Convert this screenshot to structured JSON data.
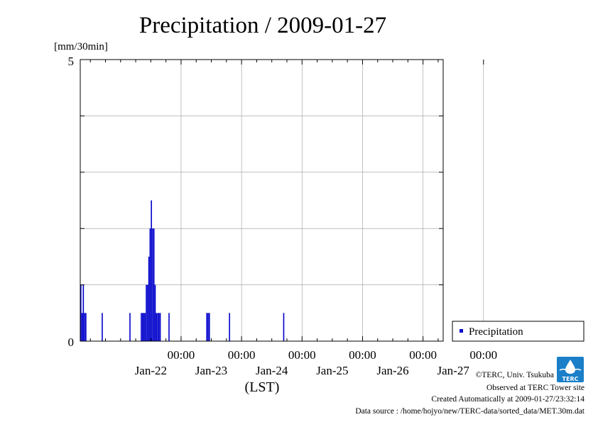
{
  "chart_data": {
    "type": "bar",
    "title": "Precipitation / 2009-01-27",
    "ylabel": "[mm/30min]",
    "xlabel": "(LST)",
    "ylim": [
      0,
      5
    ],
    "y_ticks": [
      "0",
      "5"
    ],
    "x_ticks": [
      {
        "time": "00:00",
        "date": "Jan-22"
      },
      {
        "time": "00:00",
        "date": "Jan-23"
      },
      {
        "time": "00:00",
        "date": "Jan-24"
      },
      {
        "time": "00:00",
        "date": "Jan-25"
      },
      {
        "time": "00:00",
        "date": "Jan-26"
      },
      {
        "time": "00:00",
        "date": "Jan-27"
      }
    ],
    "x_range_hours": [
      -40,
      104
    ],
    "grid": true,
    "legend": {
      "position": "right",
      "entries": [
        "Precipitation"
      ]
    },
    "series": [
      {
        "name": "Precipitation",
        "color": "#0000cc",
        "points": [
          {
            "t": -40.0,
            "v": 1.0
          },
          {
            "t": -39.5,
            "v": 0.5
          },
          {
            "t": -39.0,
            "v": 1.0
          },
          {
            "t": -38.5,
            "v": 0.5
          },
          {
            "t": -38.0,
            "v": 0.5
          },
          {
            "t": -31.5,
            "v": 0.5
          },
          {
            "t": -20.5,
            "v": 0.5
          },
          {
            "t": -16.0,
            "v": 0.5
          },
          {
            "t": -15.5,
            "v": 0.5
          },
          {
            "t": -15.0,
            "v": 0.5
          },
          {
            "t": -14.5,
            "v": 0.5
          },
          {
            "t": -14.0,
            "v": 1.0
          },
          {
            "t": -13.5,
            "v": 1.0
          },
          {
            "t": -13.0,
            "v": 1.5
          },
          {
            "t": -12.5,
            "v": 2.0
          },
          {
            "t": -12.0,
            "v": 2.5
          },
          {
            "t": -11.5,
            "v": 2.0
          },
          {
            "t": -11.0,
            "v": 2.0
          },
          {
            "t": -10.5,
            "v": 1.0
          },
          {
            "t": -10.0,
            "v": 0.5
          },
          {
            "t": -9.5,
            "v": 0.5
          },
          {
            "t": -9.0,
            "v": 0.5
          },
          {
            "t": -8.5,
            "v": 0.5
          },
          {
            "t": -5.0,
            "v": 0.5
          },
          {
            "t": 10.0,
            "v": 0.5
          },
          {
            "t": 10.5,
            "v": 0.5
          },
          {
            "t": 11.0,
            "v": 0.5
          },
          {
            "t": 19.0,
            "v": 0.5
          },
          {
            "t": 40.5,
            "v": 0.5
          }
        ]
      }
    ]
  },
  "footer": {
    "copyright": "©TERC, Univ. Tsukuba",
    "observed": "Observed at TERC Tower site",
    "created": "Created Automatically at 2009-01-27/23:32:14",
    "source": "Data source : /home/hojyo/new/TERC-data/sorted_data/MET.30m.dat",
    "logo_text": "TERC",
    "logo_icon": "terc-logo-icon"
  }
}
